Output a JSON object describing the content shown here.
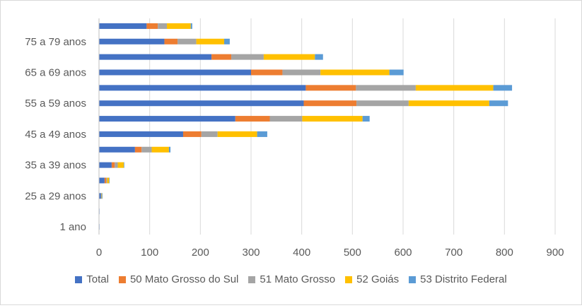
{
  "chart_data": {
    "type": "bar",
    "orientation": "horizontal",
    "stacked": true,
    "title": "",
    "xlabel": "",
    "ylabel": "",
    "xlim": [
      0,
      900
    ],
    "x_ticks": [
      0,
      100,
      200,
      300,
      400,
      500,
      600,
      700,
      800,
      900
    ],
    "grid": "vertical",
    "legend_position": "bottom",
    "categories": [
      "1 ano",
      "",
      "25 a 29 anos",
      "",
      "35 a 39 anos",
      "",
      "45 a 49 anos",
      "",
      "55 a 59 anos",
      "",
      "65 a 69 anos",
      "",
      "75 a 79 anos",
      ""
    ],
    "series": [
      {
        "name": "Total",
        "color": "#4472C4",
        "values": [
          1,
          1,
          4,
          11,
          25,
          71,
          166,
          269,
          404,
          408,
          300,
          222,
          129,
          94
        ]
      },
      {
        "name": "50 Mato Grosso do Sul",
        "color": "#ED7D31",
        "values": [
          0,
          0,
          0,
          3,
          6,
          13,
          36,
          68,
          104,
          99,
          62,
          39,
          26,
          22
        ]
      },
      {
        "name": "51 Mato Grosso",
        "color": "#A5A5A5",
        "values": [
          0,
          0,
          1,
          2,
          6,
          20,
          32,
          64,
          103,
          118,
          75,
          64,
          37,
          18
        ]
      },
      {
        "name": "52 Goiás",
        "color": "#FFC000",
        "values": [
          0,
          0,
          1,
          4,
          12,
          34,
          78,
          119,
          159,
          153,
          136,
          101,
          55,
          47
        ]
      },
      {
        "name": "53 Distrito Federal",
        "color": "#5B9BD5",
        "values": [
          0,
          0,
          1,
          1,
          1,
          3,
          20,
          14,
          37,
          37,
          28,
          16,
          11,
          3
        ]
      }
    ]
  }
}
